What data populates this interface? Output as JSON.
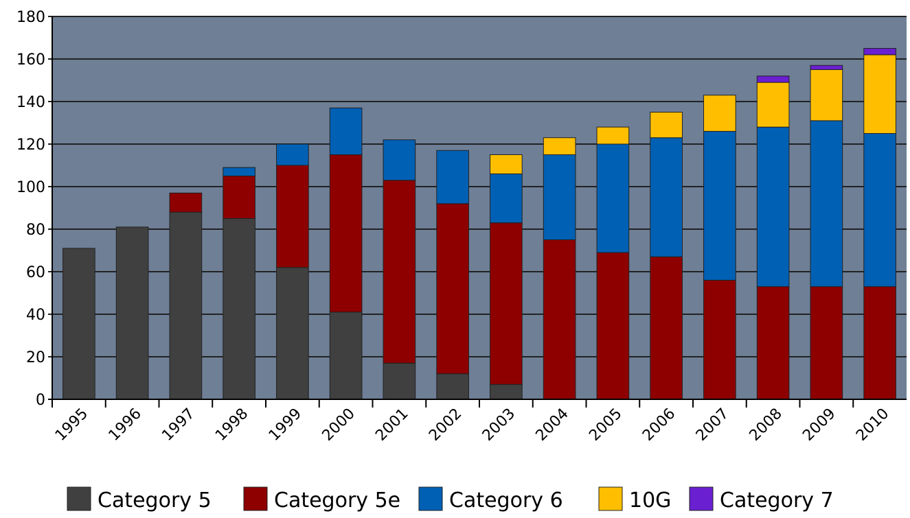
{
  "chart_data": {
    "type": "stacked_bar",
    "categories": [
      "1995",
      "1996",
      "1997",
      "1998",
      "1999",
      "2000",
      "2001",
      "2002",
      "2003",
      "2004",
      "2005",
      "2006",
      "2007",
      "2008",
      "2009",
      "2010"
    ],
    "series": [
      {
        "name": "Category 5",
        "color": "#404040",
        "values": [
          71,
          81,
          88,
          85,
          62,
          41,
          17,
          12,
          7,
          0,
          0,
          0,
          0,
          0,
          0,
          0
        ]
      },
      {
        "name": "Category 5e",
        "color": "#8e0000",
        "values": [
          0,
          0,
          9,
          20,
          48,
          74,
          86,
          80,
          76,
          75,
          69,
          67,
          56,
          53,
          53,
          53
        ]
      },
      {
        "name": "Category 6",
        "color": "#0060b4",
        "values": [
          0,
          0,
          0,
          4,
          10,
          22,
          19,
          25,
          23,
          40,
          51,
          56,
          70,
          75,
          78,
          72
        ]
      },
      {
        "name": "10G",
        "color": "#ffbf00",
        "values": [
          0,
          0,
          0,
          0,
          0,
          0,
          0,
          0,
          9,
          8,
          8,
          12,
          17,
          21,
          24,
          37
        ]
      },
      {
        "name": "Category 7",
        "color": "#6a1fd0",
        "values": [
          0,
          0,
          0,
          0,
          0,
          0,
          0,
          0,
          0,
          0,
          0,
          0,
          0,
          3,
          2,
          3
        ]
      }
    ],
    "ylim": [
      0,
      180
    ],
    "yticks": [
      0,
      20,
      40,
      60,
      80,
      100,
      120,
      140,
      160,
      180
    ],
    "grid": true
  }
}
